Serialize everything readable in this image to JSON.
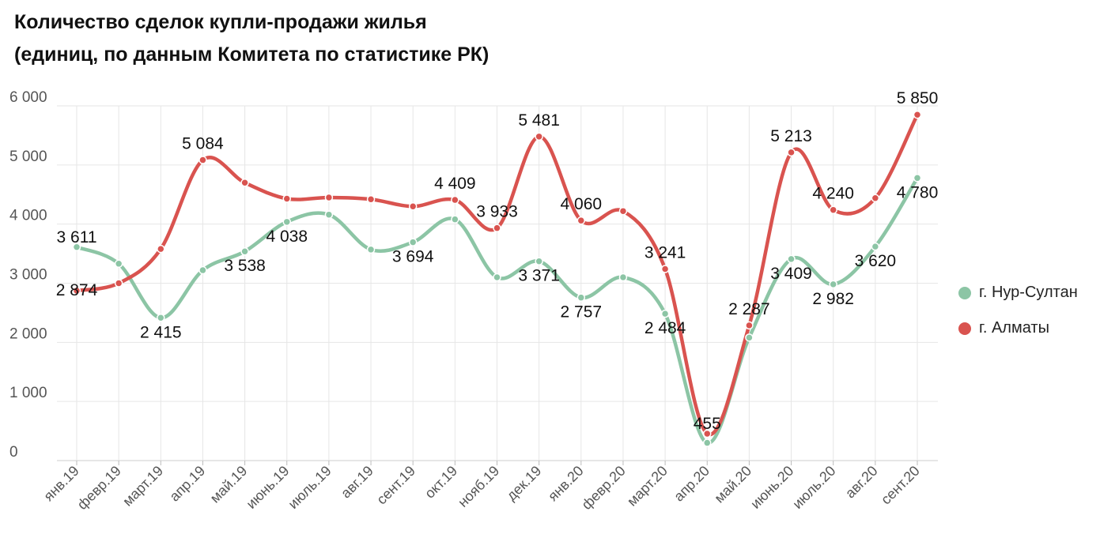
{
  "title_line1": "Количество сделок купли-продажи жилья",
  "title_line2": "(единиц, по данным Комитета по статистике РК)",
  "chart_data": {
    "type": "line",
    "title": "Количество сделок купли-продажи жилья (единиц, по данным Комитета по статистике РК)",
    "categories": [
      "янв.19",
      "февр.19",
      "март.19",
      "апр.19",
      "май.19",
      "июнь.19",
      "июль.19",
      "авг.19",
      "сент.19",
      "окт.19",
      "нояб.19",
      "дек.19",
      "янв.20",
      "февр.20",
      "март.20",
      "апр.20",
      "май.20",
      "июнь.20",
      "июль.20",
      "авг.20",
      "сент.20"
    ],
    "y_ticks": [
      "0",
      "1 000",
      "2 000",
      "3 000",
      "4 000",
      "5 000",
      "6 000"
    ],
    "ylim": [
      0,
      6000
    ],
    "grid": true,
    "legend_position": "right",
    "series": [
      {
        "name": "г. Нур-Султан",
        "color": "#8cc5a5",
        "values": [
          3611,
          3330,
          2415,
          3220,
          3538,
          4038,
          4160,
          3570,
          3694,
          4080,
          3100,
          3371,
          2757,
          3100,
          2484,
          300,
          2080,
          3409,
          2982,
          3620,
          4780
        ],
        "labels": [
          "3 611",
          "",
          "2 415",
          "",
          "3 538",
          "4 038",
          "",
          "",
          "3 694",
          "",
          "",
          "3 371",
          "2 757",
          "",
          "2 484",
          "",
          "",
          "3 409",
          "2 982",
          "3 620",
          "4 780"
        ]
      },
      {
        "name": "г. Алматы",
        "color": "#d9534f",
        "values": [
          2874,
          3000,
          3580,
          5084,
          4700,
          4430,
          4450,
          4420,
          4300,
          4409,
          3933,
          5481,
          4060,
          4220,
          3241,
          455,
          2287,
          5213,
          4240,
          4440,
          5850
        ],
        "labels": [
          "2 874",
          "",
          "",
          "5 084",
          "",
          "",
          "",
          "",
          "",
          "4 409",
          "3 933",
          "5 481",
          "4 060",
          "",
          "3 241",
          "455",
          "2 287",
          "5 213",
          "4 240",
          "",
          "5 850"
        ]
      }
    ]
  }
}
